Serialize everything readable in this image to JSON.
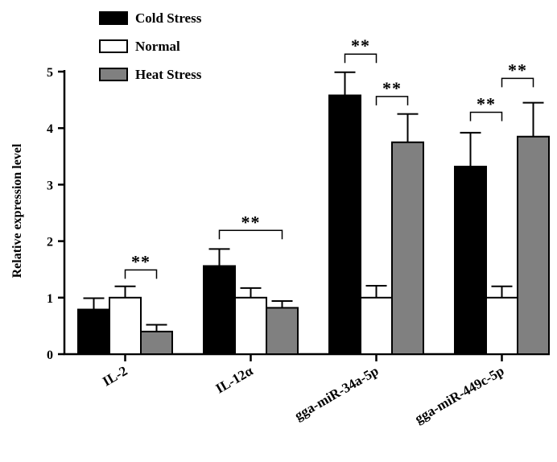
{
  "chart_data": {
    "type": "bar",
    "title": "",
    "xlabel": "",
    "ylabel": "Relative expression level",
    "ylim": [
      0,
      5
    ],
    "yticks": [
      "0",
      "1",
      "2",
      "3",
      "4",
      "5"
    ],
    "grid": false,
    "legend_position": "top-left",
    "categories": [
      "IL-2",
      "IL-12α",
      "gga-miR-34a-5p",
      "gga-miR-449c-5p"
    ],
    "series": [
      {
        "name": "Cold Stress",
        "color": "#000000",
        "values": [
          0.79,
          1.56,
          4.58,
          3.32
        ],
        "errors": [
          0.2,
          0.3,
          0.41,
          0.6
        ]
      },
      {
        "name": "Normal",
        "color": "#ffffff",
        "values": [
          1.0,
          1.0,
          1.0,
          1.0
        ],
        "errors": [
          0.2,
          0.17,
          0.21,
          0.2
        ]
      },
      {
        "name": "Heat Stress",
        "color": "#808080",
        "values": [
          0.4,
          0.82,
          3.75,
          3.85
        ],
        "errors": [
          0.12,
          0.12,
          0.5,
          0.6
        ]
      }
    ],
    "annotations": [
      {
        "text": "**",
        "category": 0,
        "from_series": 1,
        "to_series": 2,
        "y": 1.49
      },
      {
        "text": "**",
        "category": 1,
        "from_series": 0,
        "to_series": 2,
        "y": 2.19
      },
      {
        "text": "**",
        "category": 2,
        "from_series": 0,
        "to_series": 1,
        "y": 5.31
      },
      {
        "text": "**",
        "category": 2,
        "from_series": 1,
        "to_series": 2,
        "y": 4.56
      },
      {
        "text": "**",
        "category": 3,
        "from_series": 0,
        "to_series": 1,
        "y": 4.28
      },
      {
        "text": "**",
        "category": 3,
        "from_series": 1,
        "to_series": 2,
        "y": 4.88
      }
    ]
  }
}
